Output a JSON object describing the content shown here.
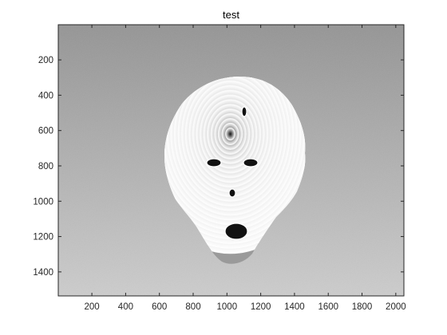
{
  "chart_data": {
    "type": "heatmap",
    "title": "test",
    "xlabel": "",
    "ylabel": "",
    "xlim": [
      1,
      2048
    ],
    "ylim": [
      1,
      1536
    ],
    "y_reversed": true,
    "colormap": "gray",
    "grid": false,
    "x_ticks": [
      200,
      400,
      600,
      800,
      1000,
      1200,
      1400,
      1600,
      1800,
      2000
    ],
    "y_ticks": [
      200,
      400,
      600,
      800,
      1000,
      1200,
      1400
    ],
    "x_tick_labels": [
      "200",
      "400",
      "600",
      "800",
      "1000",
      "1200",
      "1400",
      "1600",
      "1800",
      "2000"
    ],
    "y_tick_labels": [
      "200",
      "400",
      "600",
      "800",
      "1000",
      "1200",
      "1400"
    ],
    "background": {
      "description_free": true,
      "gray_top": 0.58,
      "gray_bottom": 0.8
    },
    "wrapped_phase_region": {
      "center_x": 1020,
      "center_y": 800,
      "fringe_period": 28
    }
  },
  "colors": {
    "axis": "#262626",
    "background_top": "#949494",
    "background_bottom": "#cdcdcd"
  }
}
